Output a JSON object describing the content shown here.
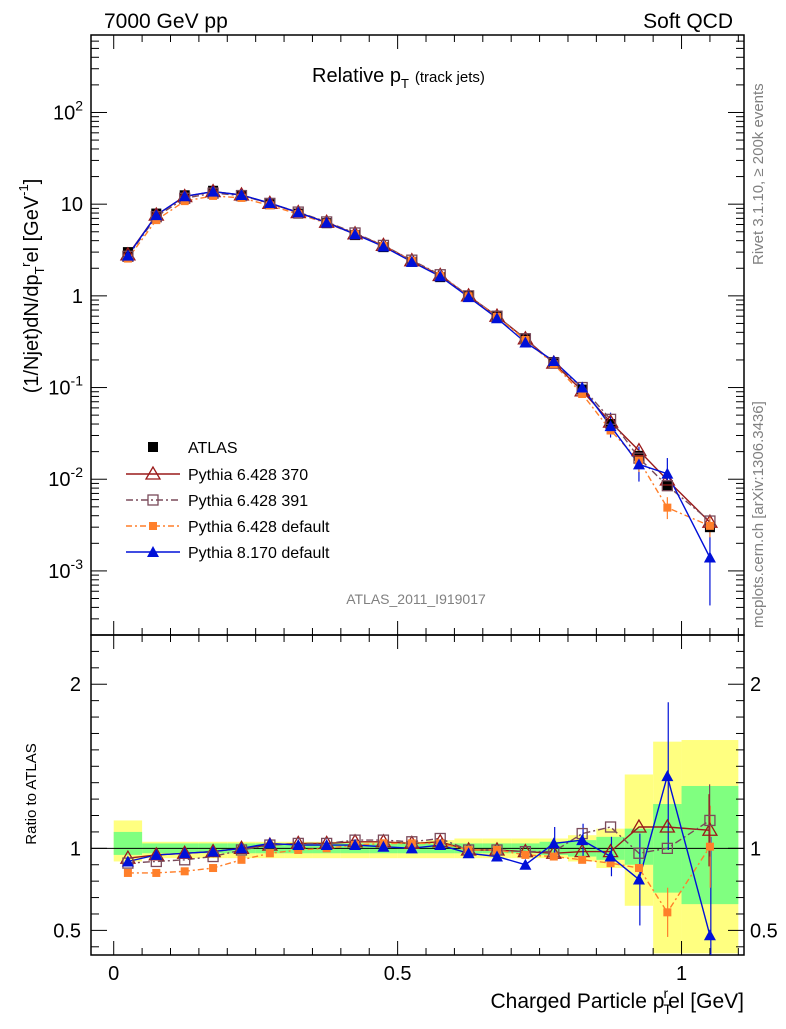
{
  "header": {
    "left": "7000 GeV pp",
    "right": "Soft QCD"
  },
  "side_labels": {
    "top": "Rivet 3.1.10, ≥ 200k events",
    "bottom": "mcplots.cern.ch [arXiv:1306.3436]"
  },
  "plot_title": {
    "main": "Relative p",
    "sub": "T",
    "suffix": "(track jets)"
  },
  "analysis_id": "ATLAS_2011_I919017",
  "y_label_main": "(1/Njet)dN/dp",
  "y_label_sub": "T",
  "y_label_sup": "r",
  "y_label_tail": "el [GeV",
  "y_label_exp": "-1",
  "y_label_end": "]",
  "ratio_ylabel": "Ratio to ATLAS",
  "x_label": "Charged Particle p",
  "x_label_sub": "T",
  "x_label_sup": "r",
  "x_label_tail": "el [GeV]",
  "colors": {
    "atlas": "#000000",
    "p370": "#9a1a1a",
    "p391": "#7a4a5a",
    "p6def": "#ff7f2a",
    "p8": "#0010d8",
    "band_yellow": "#ffff80",
    "band_green": "#80ff80"
  },
  "chart_data": [
    {
      "type": "line",
      "scale": "log",
      "title": "Relative pT (track jets)",
      "xlabel": "Charged Particle pTrel [GeV]",
      "ylabel": "(1/Njet)dN/dpTrel [GeV-1]",
      "xlim": [
        -0.04,
        1.11
      ],
      "ylim": [
        0.0002,
        700
      ],
      "y_ticks": [
        "10^-3",
        "10^-2",
        "10^-1",
        "1",
        "10",
        "10^2"
      ],
      "x_ticks": [
        "0",
        "0.5",
        "1"
      ],
      "legend_position": "bottom-left",
      "x": [
        0.025,
        0.075,
        0.125,
        0.175,
        0.225,
        0.275,
        0.325,
        0.375,
        0.425,
        0.475,
        0.525,
        0.575,
        0.625,
        0.675,
        0.725,
        0.775,
        0.825,
        0.875,
        0.925,
        0.975,
        1.05
      ],
      "series": [
        {
          "name": "ATLAS",
          "marker": "square-filled",
          "values": [
            3.0,
            7.9,
            12.5,
            14.0,
            12.6,
            10.0,
            7.9,
            6.2,
            4.6,
            3.4,
            2.35,
            1.6,
            1.0,
            0.6,
            0.345,
            0.19,
            0.095,
            0.04,
            0.018,
            0.0085,
            0.003
          ]
        },
        {
          "name": "Pythia 6.428 370",
          "marker": "triangle-open",
          "values": [
            2.8,
            7.6,
            12.1,
            13.7,
            12.6,
            10.2,
            8.1,
            6.35,
            4.75,
            3.55,
            2.42,
            1.67,
            1.0,
            0.6,
            0.34,
            0.185,
            0.092,
            0.042,
            0.0205,
            0.0098,
            0.0034
          ]
        },
        {
          "name": "Pythia 6.428 391",
          "marker": "square-open",
          "values": [
            2.7,
            7.3,
            11.6,
            13.2,
            12.4,
            10.2,
            8.2,
            6.4,
            4.85,
            3.55,
            2.45,
            1.7,
            1.0,
            0.6,
            0.34,
            0.185,
            0.1,
            0.045,
            0.017,
            0.0085,
            0.0035
          ]
        },
        {
          "name": "Pythia 6.428 default",
          "marker": "square-filled-small",
          "values": [
            2.55,
            6.7,
            10.8,
            12.3,
            11.7,
            9.7,
            7.8,
            6.2,
            4.7,
            3.5,
            2.4,
            1.65,
            0.99,
            0.59,
            0.33,
            0.18,
            0.085,
            0.034,
            0.016,
            0.0049,
            0.0031
          ]
        },
        {
          "name": "Pythia 8.170 default",
          "marker": "triangle-filled",
          "values": [
            2.75,
            7.6,
            12.2,
            13.7,
            12.6,
            10.3,
            8.1,
            6.3,
            4.7,
            3.45,
            2.35,
            1.63,
            0.97,
            0.57,
            0.31,
            0.195,
            0.1,
            0.038,
            0.0145,
            0.0115,
            0.0014
          ]
        }
      ]
    },
    {
      "type": "line",
      "ylabel": "Ratio to ATLAS",
      "xlim": [
        -0.04,
        1.11
      ],
      "ylim": [
        0.35,
        2.3
      ],
      "y_ticks": [
        "0.5",
        "1",
        "2"
      ],
      "x_ticks": [
        "0",
        "0.5",
        "1"
      ],
      "x": [
        0.025,
        0.075,
        0.125,
        0.175,
        0.225,
        0.275,
        0.325,
        0.375,
        0.425,
        0.475,
        0.525,
        0.575,
        0.625,
        0.675,
        0.725,
        0.775,
        0.825,
        0.875,
        0.925,
        0.975,
        1.05
      ],
      "band_edges": [
        0,
        0.05,
        0.1,
        0.15,
        0.2,
        0.25,
        0.3,
        0.35,
        0.4,
        0.45,
        0.5,
        0.55,
        0.6,
        0.65,
        0.7,
        0.75,
        0.8,
        0.85,
        0.9,
        0.95,
        1.0,
        1.1
      ],
      "band_green": [
        [
          0.96,
          1.1
        ],
        [
          0.97,
          1.03
        ],
        [
          0.97,
          1.03
        ],
        [
          0.97,
          1.03
        ],
        [
          0.97,
          1.03
        ],
        [
          0.97,
          1.03
        ],
        [
          0.97,
          1.03
        ],
        [
          0.97,
          1.03
        ],
        [
          0.97,
          1.03
        ],
        [
          0.97,
          1.03
        ],
        [
          0.97,
          1.03
        ],
        [
          0.97,
          1.03
        ],
        [
          0.97,
          1.03
        ],
        [
          0.97,
          1.03
        ],
        [
          0.97,
          1.03
        ],
        [
          0.96,
          1.04
        ],
        [
          0.95,
          1.05
        ],
        [
          0.93,
          1.07
        ],
        [
          0.9,
          1.12
        ],
        [
          0.73,
          1.27
        ],
        [
          0.66,
          1.38
        ]
      ],
      "band_yellow": [
        [
          0.92,
          1.17
        ],
        [
          0.94,
          1.04
        ],
        [
          0.94,
          1.04
        ],
        [
          0.94,
          1.04
        ],
        [
          0.94,
          1.04
        ],
        [
          0.94,
          1.04
        ],
        [
          0.94,
          1.04
        ],
        [
          0.94,
          1.04
        ],
        [
          0.94,
          1.04
        ],
        [
          0.94,
          1.04
        ],
        [
          0.94,
          1.04
        ],
        [
          0.94,
          1.05
        ],
        [
          0.94,
          1.06
        ],
        [
          0.94,
          1.06
        ],
        [
          0.94,
          1.06
        ],
        [
          0.94,
          1.06
        ],
        [
          0.92,
          1.08
        ],
        [
          0.88,
          1.12
        ],
        [
          0.65,
          1.45
        ],
        [
          0.36,
          1.65
        ],
        [
          0.36,
          1.66
        ]
      ],
      "series": [
        {
          "name": "Pythia 6.428 370",
          "values": [
            0.94,
            0.96,
            0.97,
            0.98,
            1.0,
            1.02,
            1.03,
            1.03,
            1.04,
            1.04,
            1.03,
            1.04,
            0.99,
            0.99,
            0.98,
            0.97,
            0.98,
            0.98,
            1.13,
            1.13,
            1.11
          ]
        },
        {
          "name": "Pythia 6.428 391",
          "values": [
            0.91,
            0.92,
            0.93,
            0.95,
            0.99,
            1.02,
            1.03,
            1.03,
            1.05,
            1.05,
            1.04,
            1.06,
            0.99,
            0.99,
            0.98,
            0.98,
            1.09,
            1.13,
            0.97,
            1.0,
            1.17
          ]
        },
        {
          "name": "Pythia 6.428 default",
          "values": [
            0.85,
            0.85,
            0.86,
            0.88,
            0.93,
            0.97,
            0.99,
            1.0,
            1.02,
            1.03,
            1.03,
            1.03,
            0.99,
            0.99,
            0.96,
            0.95,
            0.93,
            0.91,
            0.88,
            0.61,
            1.01
          ]
        },
        {
          "name": "Pythia 8.170 default",
          "values": [
            0.92,
            0.96,
            0.97,
            0.98,
            1.0,
            1.03,
            1.02,
            1.02,
            1.02,
            1.01,
            1.0,
            1.02,
            0.97,
            0.95,
            0.9,
            1.03,
            1.05,
            0.95,
            0.81,
            1.44,
            0.47
          ]
        }
      ]
    }
  ]
}
